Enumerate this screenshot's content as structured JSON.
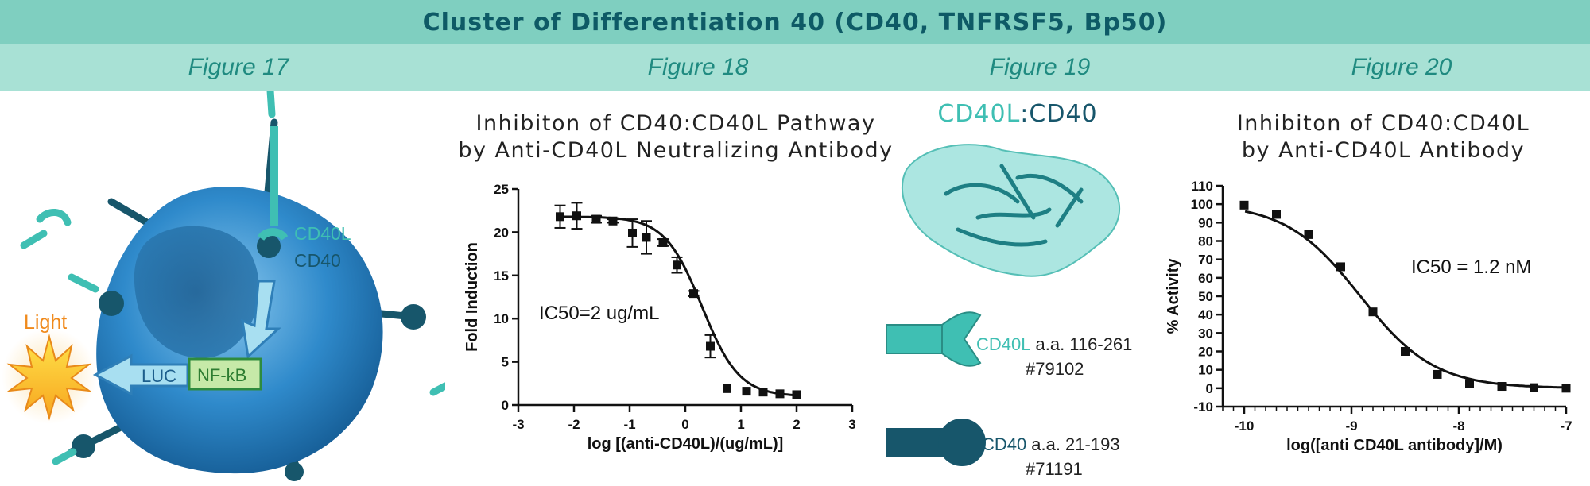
{
  "header": {
    "title": "Cluster of Differentiation 40 (CD40, TNFRSF5, Bp50)"
  },
  "figure_labels": [
    "Figure 17",
    "Figure 18",
    "Figure 19",
    "Figure 20"
  ],
  "fig17": {
    "ligand_label": "CD40L",
    "receptor_label": "CD40",
    "light_label": "Light",
    "reporter_label": "LUC",
    "promoter_label": "NF-kB",
    "colors": {
      "teal": "#3fbfb3",
      "dark_teal": "#17566b",
      "cell_blue": "#2e86c1",
      "light_orange": "#f7a73b"
    }
  },
  "fig19": {
    "title_part1": "CD40L",
    "title_sep": ":",
    "title_part2": "CD40",
    "proteins": [
      {
        "name": "CD40L",
        "range": "a.a. 116-261",
        "catalog": "#79102",
        "color": "#3fbfb3"
      },
      {
        "name": "CD40",
        "range": "a.a. 21-193",
        "catalog": "#71191",
        "color": "#17566b"
      }
    ]
  },
  "chart_data": [
    {
      "type": "scatter",
      "title_line1": "Inhibiton of CD40:CD40L Pathway",
      "title_line2": "by Anti-CD40L Neutralizing Antibody",
      "xlabel": "log [(anti-CD40L)/(ug/mL)]",
      "ylabel": "Fold Induction",
      "xlim": [
        -3,
        3
      ],
      "ylim": [
        0,
        25
      ],
      "xticks": [
        "-3",
        "-2",
        "-1",
        "0",
        "1",
        "2",
        "3"
      ],
      "yticks": [
        "0",
        "5",
        "10",
        "15",
        "20",
        "25"
      ],
      "annotation": "IC50=2 ug/mL",
      "points": [
        {
          "x": -2.25,
          "y": 21.8,
          "err": 1.3
        },
        {
          "x": -1.95,
          "y": 21.9,
          "err": 1.5
        },
        {
          "x": -1.6,
          "y": 21.5,
          "err": 0.4
        },
        {
          "x": -1.3,
          "y": 21.3,
          "err": 0.2
        },
        {
          "x": -0.95,
          "y": 19.9,
          "err": 1.6
        },
        {
          "x": -0.7,
          "y": 19.4,
          "err": 1.9
        },
        {
          "x": -0.4,
          "y": 18.8,
          "err": 0.4
        },
        {
          "x": -0.15,
          "y": 16.2,
          "err": 0.9
        },
        {
          "x": 0.15,
          "y": 12.9,
          "err": 0.3
        },
        {
          "x": 0.45,
          "y": 6.8,
          "err": 1.3
        },
        {
          "x": 0.75,
          "y": 1.9,
          "err": 0
        },
        {
          "x": 1.1,
          "y": 1.6,
          "err": 0
        },
        {
          "x": 1.4,
          "y": 1.5,
          "err": 0
        },
        {
          "x": 1.7,
          "y": 1.3,
          "err": 0
        },
        {
          "x": 2.0,
          "y": 1.2,
          "err": 0
        }
      ],
      "fit": {
        "top": 21.8,
        "bottom": 1.0,
        "logIC50": 0.3,
        "hill": 1.3
      },
      "grid": false
    },
    {
      "type": "scatter",
      "title_line1": "Inhibiton of CD40:CD40L",
      "title_line2": "by Anti-CD40L Antibody",
      "xlabel": "log([anti CD40L antibody]/M)",
      "ylabel": "% Activity",
      "xlim": [
        -10.2,
        -7
      ],
      "ylim": [
        -10,
        110
      ],
      "xticks": [
        "-10",
        "-9",
        "-8",
        "-7"
      ],
      "yticks": [
        "-10",
        "0",
        "10",
        "20",
        "30",
        "40",
        "50",
        "60",
        "70",
        "80",
        "90",
        "100",
        "110"
      ],
      "annotation": "IC50 = 1.2 nM",
      "points": [
        {
          "x": -10.0,
          "y": 99.5
        },
        {
          "x": -9.7,
          "y": 94.5
        },
        {
          "x": -9.4,
          "y": 83.5
        },
        {
          "x": -9.1,
          "y": 66.0
        },
        {
          "x": -8.8,
          "y": 41.5
        },
        {
          "x": -8.5,
          "y": 20.0
        },
        {
          "x": -8.2,
          "y": 7.5
        },
        {
          "x": -7.9,
          "y": 2.5
        },
        {
          "x": -7.6,
          "y": 1.0
        },
        {
          "x": -7.3,
          "y": 0.3
        },
        {
          "x": -7.0,
          "y": 0.0
        }
      ],
      "fit": {
        "top": 100.5,
        "bottom": 0,
        "logIC50": -8.92,
        "hill": 1.25
      },
      "grid": false
    }
  ]
}
